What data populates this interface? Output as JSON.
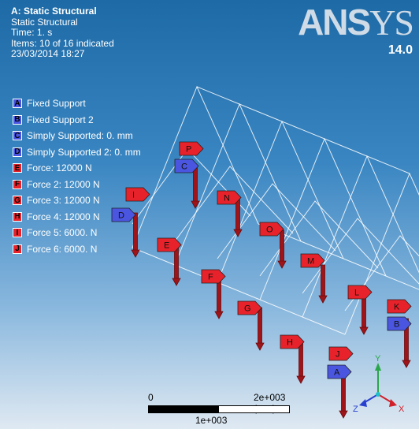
{
  "info": {
    "title": "A: Static Structural",
    "lines": [
      "Static Structural",
      "Time: 1. s",
      "Items: 10 of 16 indicated",
      "23/03/2014 18:27"
    ]
  },
  "legend": [
    {
      "letter": "A",
      "text": "Fixed Support",
      "color": "#4a55e0"
    },
    {
      "letter": "B",
      "text": "Fixed Support 2",
      "color": "#4a55e0"
    },
    {
      "letter": "C",
      "text": "Simply Supported: 0. mm",
      "color": "#4a55e0"
    },
    {
      "letter": "D",
      "text": "Simply Supported 2: 0. mm",
      "color": "#4a55e0"
    },
    {
      "letter": "E",
      "text": "Force: 12000 N",
      "color": "#e8222a"
    },
    {
      "letter": "F",
      "text": "Force 2: 12000 N",
      "color": "#e8222a"
    },
    {
      "letter": "G",
      "text": "Force 3: 12000 N",
      "color": "#e8222a"
    },
    {
      "letter": "H",
      "text": "Force 4: 12000 N",
      "color": "#e8222a"
    },
    {
      "letter": "I",
      "text": "Force 5: 6000. N",
      "color": "#e8222a"
    },
    {
      "letter": "J",
      "text": "Force 6: 6000. N",
      "color": "#e8222a"
    }
  ],
  "logo": {
    "brand_main": "ANS",
    "brand_tail": "YS",
    "version": "14.0"
  },
  "scale": {
    "zero": "0",
    "max": "2e+003 (mm)",
    "mid": "1e+003"
  },
  "triad": {
    "x": "X",
    "y": "Y",
    "z": "Z"
  },
  "model_labels": [
    {
      "letter": "P",
      "color": "#e8222a"
    },
    {
      "letter": "C",
      "color": "#4a55e0"
    },
    {
      "letter": "I",
      "color": "#e8222a"
    },
    {
      "letter": "D",
      "color": "#4a55e0"
    },
    {
      "letter": "N",
      "color": "#e8222a"
    },
    {
      "letter": "O",
      "color": "#e8222a"
    },
    {
      "letter": "E",
      "color": "#e8222a"
    },
    {
      "letter": "M",
      "color": "#e8222a"
    },
    {
      "letter": "F",
      "color": "#e8222a"
    },
    {
      "letter": "L",
      "color": "#e8222a"
    },
    {
      "letter": "G",
      "color": "#e8222a"
    },
    {
      "letter": "K",
      "color": "#e8222a"
    },
    {
      "letter": "B",
      "color": "#4a55e0"
    },
    {
      "letter": "H",
      "color": "#e8222a"
    },
    {
      "letter": "J",
      "color": "#e8222a"
    },
    {
      "letter": "A",
      "color": "#4a55e0"
    }
  ]
}
